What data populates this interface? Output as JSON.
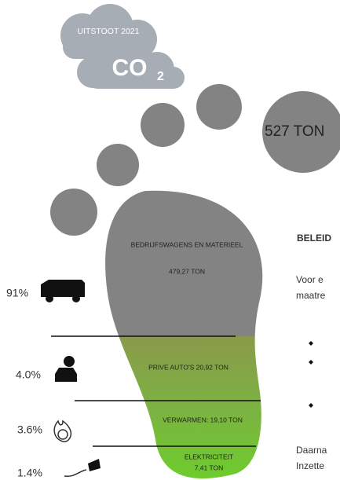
{
  "badge": {
    "label": "UITSTOOT 2021",
    "formula": "CO",
    "subscript": "2"
  },
  "total": "527 TON",
  "segments": [
    {
      "label": "BEDRIJFSWAGENS EN MATERIEEL",
      "amount": "479,27 TON",
      "share": "91%"
    },
    {
      "label": "PRIVE AUTO'S 20,92 TON",
      "share": "4.0%"
    },
    {
      "label": "VERWARMEN: 19,10 TON",
      "share": "3.6%"
    },
    {
      "label": "ELEKTRICITEIT",
      "amount": "7,41 TON",
      "share": "1.4%"
    }
  ],
  "side_text": {
    "heading": "BELEID",
    "paragraph_lines": [
      "Voor e",
      "maatre"
    ],
    "footer_lines": [
      "Daarna",
      "Inzette"
    ]
  }
}
